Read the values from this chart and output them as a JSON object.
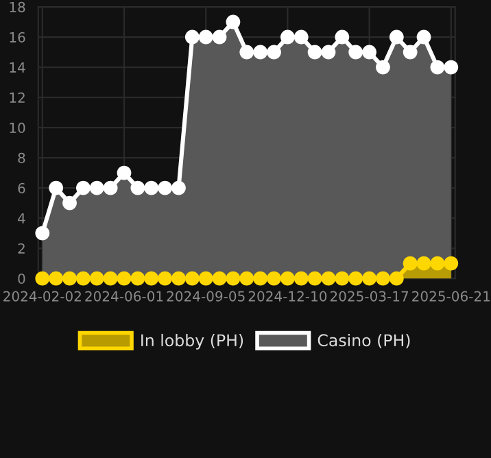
{
  "chart_data": {
    "type": "area",
    "categories": [
      "2024-02-02",
      null,
      null,
      null,
      null,
      null,
      "2024-06-01",
      null,
      null,
      null,
      null,
      null,
      "2024-09-05",
      null,
      null,
      null,
      null,
      null,
      "2024-12-10",
      null,
      null,
      null,
      null,
      null,
      "2025-03-17",
      null,
      null,
      null,
      null,
      null,
      "2025-06-21"
    ],
    "series": [
      {
        "name": "In lobby (PH)",
        "color": "#ffd700",
        "values": [
          0,
          0,
          0,
          0,
          0,
          0,
          0,
          0,
          0,
          0,
          0,
          0,
          0,
          0,
          0,
          0,
          0,
          0,
          0,
          0,
          0,
          0,
          0,
          0,
          0,
          0,
          0,
          1,
          1,
          1,
          1
        ]
      },
      {
        "name": "Casino (PH)",
        "color": "#ffffff",
        "values": [
          3,
          6,
          5,
          6,
          6,
          6,
          7,
          6,
          6,
          6,
          6,
          16,
          16,
          16,
          17,
          15,
          15,
          15,
          16,
          16,
          15,
          15,
          16,
          15,
          15,
          14,
          16,
          15,
          16,
          14,
          14
        ]
      }
    ],
    "ylim": [
      0,
      18
    ],
    "yticks": [
      0,
      2,
      4,
      6,
      8,
      10,
      12,
      14,
      16,
      18
    ],
    "grid": true,
    "legend": "bottom",
    "marker": "circle",
    "line_style": "solid"
  }
}
